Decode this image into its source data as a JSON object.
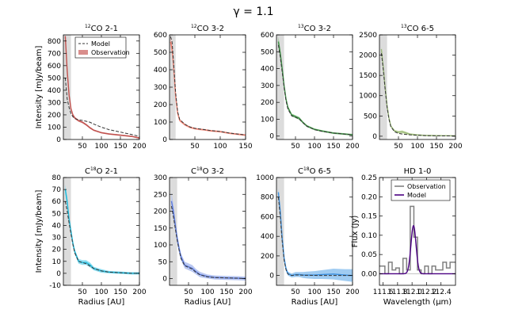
{
  "figure_title": "γ = 1.1",
  "chart_data": [
    {
      "type": "line",
      "title_sup": "12",
      "title_main": "CO 2-1",
      "xlabel": "",
      "ylabel": "Intensity [mJy/beam]",
      "xlim": [
        0,
        200
      ],
      "ylim": [
        0,
        850
      ],
      "xticks": [
        50,
        100,
        150,
        200
      ],
      "yticks": [
        0,
        100,
        200,
        300,
        400,
        500,
        600,
        700,
        800
      ],
      "beam_shade": [
        0,
        20
      ],
      "color": "#c0504d",
      "band_color": "#d98e8c",
      "legend": [
        "Model",
        "Observation"
      ],
      "observation": {
        "x": [
          5,
          10,
          15,
          20,
          25,
          30,
          40,
          50,
          60,
          70,
          80,
          100,
          120,
          150,
          180,
          200
        ],
        "y": [
          840,
          560,
          360,
          250,
          200,
          175,
          152,
          140,
          120,
          95,
          75,
          55,
          45,
          35,
          25,
          12
        ],
        "err": [
          35,
          30,
          25,
          15,
          10,
          10,
          8,
          8,
          8,
          8,
          6,
          6,
          6,
          6,
          6,
          6
        ]
      },
      "model": {
        "x": [
          5,
          10,
          15,
          20,
          25,
          30,
          40,
          50,
          60,
          70,
          80,
          100,
          120,
          150,
          180,
          200
        ],
        "y": [
          500,
          330,
          260,
          210,
          185,
          170,
          160,
          155,
          148,
          140,
          125,
          100,
          80,
          60,
          40,
          25
        ]
      }
    },
    {
      "type": "line",
      "title_sup": "12",
      "title_main": "CO 3-2",
      "xlabel": "",
      "ylabel": "",
      "xlim": [
        0,
        150
      ],
      "ylim": [
        0,
        600
      ],
      "xticks": [
        50,
        100,
        150
      ],
      "yticks": [
        0,
        100,
        200,
        300,
        400,
        500,
        600
      ],
      "beam_shade": [
        0,
        12
      ],
      "color": "#f08070",
      "band_color": "#f7b5ab",
      "legend": [],
      "observation": {
        "x": [
          2,
          5,
          8,
          12,
          16,
          20,
          30,
          40,
          50,
          60,
          70,
          80,
          100,
          120,
          150
        ],
        "y": [
          560,
          520,
          420,
          250,
          150,
          110,
          85,
          70,
          62,
          58,
          55,
          50,
          45,
          35,
          25
        ],
        "err": [
          30,
          25,
          20,
          15,
          10,
          8,
          6,
          6,
          5,
          5,
          5,
          5,
          5,
          5,
          5
        ]
      },
      "model": {
        "x": [
          2,
          5,
          8,
          12,
          16,
          20,
          30,
          40,
          50,
          60,
          70,
          80,
          100,
          120,
          150
        ],
        "y": [
          590,
          560,
          440,
          270,
          160,
          115,
          88,
          72,
          64,
          60,
          56,
          52,
          46,
          36,
          26
        ]
      }
    },
    {
      "type": "line",
      "title_sup": "13",
      "title_main": "CO 3-2",
      "xlabel": "",
      "ylabel": "",
      "xlim": [
        0,
        200
      ],
      "ylim": [
        -20,
        600
      ],
      "xticks": [
        50,
        100,
        150,
        200
      ],
      "yticks": [
        0,
        100,
        200,
        300,
        400,
        500,
        600
      ],
      "beam_shade": [
        0,
        20
      ],
      "color": "#3d8f45",
      "band_color": "#7fbf80",
      "legend": [],
      "observation": {
        "x": [
          5,
          10,
          15,
          20,
          25,
          30,
          40,
          50,
          60,
          70,
          80,
          100,
          120,
          150,
          180,
          200
        ],
        "y": [
          560,
          490,
          400,
          300,
          220,
          170,
          125,
          115,
          105,
          80,
          60,
          40,
          30,
          18,
          12,
          8
        ],
        "err": [
          30,
          25,
          20,
          15,
          12,
          10,
          8,
          8,
          8,
          6,
          6,
          5,
          5,
          5,
          5,
          5
        ]
      },
      "model": {
        "x": [
          5,
          10,
          15,
          20,
          25,
          30,
          40,
          50,
          60,
          70,
          80,
          100,
          120,
          150,
          180,
          200
        ],
        "y": [
          540,
          470,
          380,
          290,
          210,
          160,
          120,
          112,
          100,
          78,
          58,
          38,
          28,
          18,
          12,
          8
        ]
      }
    },
    {
      "type": "line",
      "title_sup": "13",
      "title_main": "CO 6-5",
      "xlabel": "",
      "ylabel": "",
      "xlim": [
        0,
        200
      ],
      "ylim": [
        -80,
        2500
      ],
      "xticks": [
        50,
        100,
        150,
        200
      ],
      "yticks": [
        0,
        500,
        1000,
        1500,
        2000,
        2500
      ],
      "beam_shade": [
        0,
        20
      ],
      "color": "#9ab87a",
      "band_color": "#c3d9a0",
      "legend": [],
      "observation": {
        "x": [
          5,
          10,
          15,
          20,
          25,
          30,
          40,
          50,
          60,
          70,
          80,
          100,
          120,
          150,
          180,
          200
        ],
        "y": [
          2150,
          1700,
          1200,
          750,
          450,
          250,
          130,
          100,
          110,
          80,
          50,
          30,
          20,
          15,
          12,
          10
        ],
        "err": [
          60,
          60,
          50,
          40,
          30,
          25,
          25,
          30,
          35,
          30,
          25,
          20,
          15,
          15,
          15,
          15
        ]
      },
      "model": {
        "x": [
          5,
          10,
          15,
          20,
          25,
          30,
          40,
          50,
          60,
          70,
          80,
          100,
          120,
          150,
          180,
          200
        ],
        "y": [
          2050,
          1650,
          1150,
          720,
          420,
          230,
          110,
          70,
          55,
          45,
          35,
          25,
          15,
          10,
          8,
          5
        ]
      }
    },
    {
      "type": "line",
      "title_sup": "18",
      "title_main": "O 2-1",
      "title_prefix": "C",
      "xlabel": "Radius [AU]",
      "ylabel": "Intensity [mJy/beam]",
      "xlim": [
        0,
        200
      ],
      "ylim": [
        -10,
        80
      ],
      "xticks": [
        50,
        100,
        150,
        200
      ],
      "yticks": [
        -10,
        0,
        10,
        20,
        30,
        40,
        50,
        60,
        70,
        80
      ],
      "beam_shade": [
        0,
        20
      ],
      "color": "#20b8d8",
      "band_color": "#7fd8ee",
      "legend": [],
      "observation": {
        "x": [
          5,
          10,
          15,
          20,
          25,
          30,
          40,
          50,
          60,
          70,
          80,
          100,
          120,
          150,
          180,
          200
        ],
        "y": [
          70,
          60,
          45,
          35,
          25,
          18,
          10,
          9,
          9,
          7,
          4,
          2,
          1,
          0.5,
          0,
          0
        ],
        "err": [
          4,
          4,
          3,
          3,
          3,
          2,
          2,
          2,
          2,
          2,
          1.5,
          1.5,
          1,
          1,
          1,
          1
        ]
      },
      "model": {
        "x": [
          5,
          10,
          15,
          20,
          25,
          30,
          40,
          50,
          60,
          70,
          80,
          100,
          120,
          150,
          180,
          200
        ],
        "y": [
          60,
          52,
          42,
          33,
          24,
          17,
          10,
          9,
          8,
          6,
          4,
          2,
          1,
          0.5,
          0,
          0
        ]
      }
    },
    {
      "type": "line",
      "title_sup": "18",
      "title_main": "O 3-2",
      "title_prefix": "C",
      "xlabel": "Radius [AU]",
      "ylabel": "",
      "xlim": [
        0,
        200
      ],
      "ylim": [
        -20,
        300
      ],
      "xticks": [
        50,
        100,
        150,
        200
      ],
      "yticks": [
        0,
        50,
        100,
        150,
        200,
        250,
        300
      ],
      "beam_shade": [
        0,
        20
      ],
      "color": "#5a78d8",
      "band_color": "#aebef0",
      "legend": [],
      "observation": {
        "x": [
          5,
          10,
          15,
          20,
          25,
          30,
          40,
          50,
          60,
          70,
          80,
          100,
          120,
          150,
          180,
          200
        ],
        "y": [
          230,
          200,
          160,
          120,
          90,
          65,
          40,
          35,
          30,
          20,
          12,
          6,
          3,
          2,
          1,
          0
        ],
        "err": [
          25,
          20,
          18,
          15,
          12,
          10,
          10,
          10,
          10,
          8,
          8,
          6,
          6,
          6,
          6,
          6
        ]
      },
      "model": {
        "x": [
          5,
          10,
          15,
          20,
          25,
          30,
          40,
          50,
          60,
          70,
          80,
          100,
          120,
          150,
          180,
          200
        ],
        "y": [
          215,
          185,
          150,
          115,
          85,
          60,
          38,
          33,
          28,
          18,
          11,
          5,
          3,
          2,
          1,
          0
        ]
      }
    },
    {
      "type": "line",
      "title_sup": "18",
      "title_main": "O 6-5",
      "title_prefix": "C",
      "xlabel": "Radius [AU]",
      "ylabel": "",
      "xlim": [
        0,
        200
      ],
      "ylim": [
        -100,
        1000
      ],
      "xticks": [
        50,
        100,
        150,
        200
      ],
      "yticks": [
        0,
        200,
        400,
        600,
        800,
        1000
      ],
      "beam_shade": [
        0,
        20
      ],
      "color": "#3a8fe0",
      "band_color": "#8fc3f0",
      "legend": [],
      "observation": {
        "x": [
          5,
          10,
          15,
          20,
          25,
          30,
          40,
          50,
          60,
          70,
          80,
          100,
          120,
          150,
          180,
          200
        ],
        "y": [
          850,
          650,
          380,
          180,
          70,
          20,
          0,
          10,
          10,
          5,
          5,
          5,
          10,
          15,
          5,
          0
        ],
        "err": [
          40,
          40,
          35,
          30,
          25,
          20,
          20,
          25,
          25,
          30,
          35,
          40,
          45,
          55,
          60,
          65
        ]
      },
      "model": {
        "x": [
          5,
          10,
          15,
          20,
          25,
          30,
          40,
          50,
          60,
          70,
          80,
          100,
          120,
          150,
          180,
          200
        ],
        "y": [
          800,
          600,
          350,
          160,
          60,
          15,
          0,
          5,
          5,
          3,
          2,
          1,
          0,
          0,
          0,
          0
        ]
      }
    },
    {
      "type": "step",
      "title_main": "HD 1-0",
      "xlabel": "Wavelength (μm)",
      "ylabel": "Flux (Jy)",
      "xlim": [
        111.55,
        112.6
      ],
      "ylim": [
        -0.03,
        0.25
      ],
      "xticks": [
        111.6,
        111.8,
        112.0,
        112.2,
        112.4
      ],
      "yticks": [
        0.0,
        0.05,
        0.1,
        0.15,
        0.2,
        0.25
      ],
      "legend": [
        "Observation",
        "Model"
      ],
      "observation": {
        "x": [
          111.55,
          111.6,
          111.65,
          111.7,
          111.75,
          111.8,
          111.85,
          111.9,
          111.95,
          112.0,
          112.05,
          112.1,
          112.15,
          112.2,
          112.25,
          112.3,
          112.35,
          112.4,
          112.45,
          112.5,
          112.55,
          112.6
        ],
        "y": [
          0.02,
          0.02,
          0.0,
          0.03,
          0.01,
          0.015,
          0.0,
          0.04,
          0.01,
          0.175,
          0.095,
          0.01,
          0.0,
          0.02,
          0.0,
          0.02,
          0.01,
          0.01,
          0.03,
          0.015,
          0.03,
          0.03
        ]
      },
      "model": {
        "center": 112.02,
        "amplitude": 0.125,
        "sigma": 0.035
      },
      "observation_color": "#808080",
      "model_color": "#4b0082"
    }
  ]
}
